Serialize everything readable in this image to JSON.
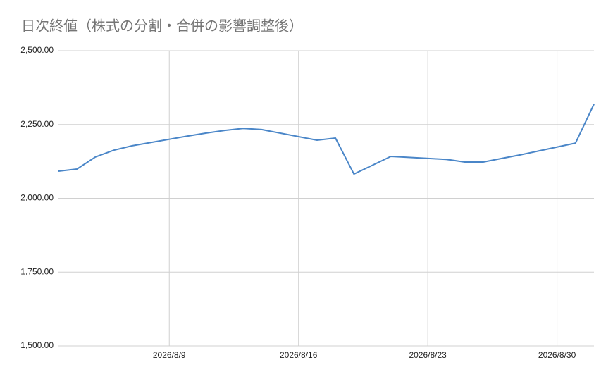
{
  "chart_data": {
    "type": "line",
    "title": "日次終値（株式の分割・合併の影響調整後）",
    "x": [
      "2026/8/3",
      "2026/8/4",
      "2026/8/5",
      "2026/8/6",
      "2026/8/7",
      "2026/8/10",
      "2026/8/11",
      "2026/8/12",
      "2026/8/13",
      "2026/8/14",
      "2026/8/17",
      "2026/8/18",
      "2026/8/19",
      "2026/8/20",
      "2026/8/21",
      "2026/8/24",
      "2026/8/25",
      "2026/8/26",
      "2026/8/27",
      "2026/8/28",
      "2026/8/31",
      "2026/9/1"
    ],
    "series": [
      {
        "color": "#4a86c8",
        "values": [
          2092,
          2099,
          2140,
          2163,
          2178,
          2211,
          2221,
          2230,
          2237,
          2233,
          2197,
          2204,
          2082,
          2112,
          2142,
          2132,
          2123,
          2123,
          2135,
          2147,
          2187,
          2319
        ]
      }
    ],
    "xlim": [
      "2026/8/3",
      "2026/9/1"
    ],
    "xticks": [
      "2026/8/9",
      "2026/8/16",
      "2026/8/23",
      "2026/8/30"
    ],
    "ylim": [
      1500,
      2500
    ],
    "yticks": [
      {
        "value": 1500,
        "label": "1,500.00"
      },
      {
        "value": 1750,
        "label": "1,750.00"
      },
      {
        "value": 2000,
        "label": "2,000.00"
      },
      {
        "value": 2250,
        "label": "2,250.00"
      },
      {
        "value": 2500,
        "label": "2,500.00"
      }
    ],
    "grid": true
  }
}
